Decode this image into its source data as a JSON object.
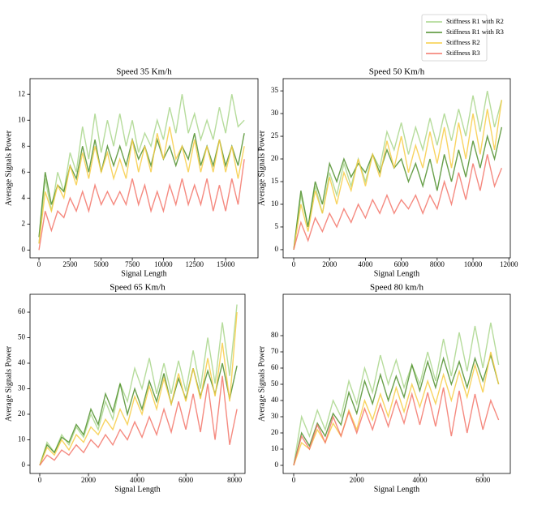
{
  "chart_data": [
    {
      "type": "line",
      "title": "Speed 35 Km/h",
      "x_label": "Signal Length",
      "y_label": "Average Signals Power",
      "x": [
        0,
        500,
        1000,
        1500,
        2000,
        2500,
        3000,
        3500,
        4000,
        4500,
        5000,
        5500,
        6000,
        6500,
        7000,
        7500,
        8000,
        8500,
        9000,
        9500,
        10000,
        10500,
        11000,
        11500,
        12000,
        12500,
        13000,
        13500,
        14000,
        14500,
        15000,
        15500,
        16000,
        16500
      ],
      "xlim": [
        -720,
        17600
      ],
      "ylim": [
        -0.6,
        13.2
      ],
      "xticks": [
        0,
        2500,
        5000,
        7500,
        10000,
        12500,
        15000
      ],
      "yticks": [
        0,
        2,
        4,
        6,
        8,
        10,
        12
      ],
      "series": [
        {
          "name": "Stiffness R1 with R2",
          "color": "#a9d68b",
          "values": [
            0.5,
            5.5,
            3,
            6,
            4.5,
            7.5,
            6,
            9.5,
            7,
            10.5,
            7.5,
            10,
            8,
            10.5,
            8,
            10,
            7.5,
            9,
            8,
            10,
            8.5,
            11,
            9,
            12,
            9,
            10.5,
            8.5,
            10,
            8.5,
            11,
            9,
            12,
            9.5,
            10
          ]
        },
        {
          "name": "Stiffness R1 with R3",
          "color": "#4f8f2b",
          "values": [
            1,
            6,
            3.5,
            5,
            4.5,
            6.5,
            5.5,
            8,
            6,
            8.5,
            6,
            8,
            6.5,
            8,
            6.5,
            8.5,
            7,
            8,
            6.5,
            8.5,
            7,
            8,
            6.5,
            8,
            7,
            9,
            6.5,
            8,
            6.5,
            8.5,
            6.5,
            8,
            6.5,
            9
          ]
        },
        {
          "name": "Stiffness R2",
          "color": "#f7cd45",
          "values": [
            0.5,
            4.5,
            3,
            5,
            4,
            6.5,
            5,
            7.5,
            5.5,
            8,
            6,
            7.5,
            5.5,
            7,
            5.5,
            8.5,
            6,
            8,
            6,
            9,
            7,
            9.5,
            7,
            8,
            6,
            8.5,
            6,
            8,
            6,
            8.5,
            6,
            8,
            5.5,
            8
          ]
        },
        {
          "name": "Stiffness R3",
          "color": "#f3766a",
          "values": [
            0,
            3,
            1.5,
            3,
            2.5,
            4,
            3,
            4.5,
            3,
            5,
            3.5,
            4.5,
            3.5,
            4.5,
            3.5,
            5.5,
            3.5,
            5,
            3,
            4.5,
            3,
            5,
            3.5,
            5.5,
            3.5,
            5,
            3.5,
            5.5,
            3,
            5,
            3,
            5.5,
            3.5,
            7
          ]
        }
      ]
    },
    {
      "type": "line",
      "title": "Speed 50 Km/h",
      "x_label": "Signal Length",
      "y_label": "Average Signals Power",
      "x": [
        0,
        400,
        800,
        1200,
        1600,
        2000,
        2400,
        2800,
        3200,
        3600,
        4000,
        4400,
        4800,
        5200,
        5600,
        6000,
        6400,
        6800,
        7200,
        7600,
        8000,
        8400,
        8800,
        9200,
        9600,
        10000,
        10400,
        10800,
        11200,
        11600
      ],
      "xlim": [
        -590,
        12080
      ],
      "ylim": [
        -1.8,
        37.7
      ],
      "xticks": [
        0,
        2000,
        4000,
        6000,
        8000,
        10000,
        12000
      ],
      "yticks": [
        0,
        5,
        10,
        15,
        20,
        25,
        30,
        35
      ],
      "series": [
        {
          "name": "Stiffness R1 with R2",
          "color": "#a9d68b",
          "values": [
            0,
            12,
            5,
            14,
            8,
            17,
            12,
            19,
            14,
            20,
            15,
            21,
            18,
            26,
            22,
            28,
            21,
            27,
            22,
            29,
            23,
            30,
            24,
            31,
            25,
            34,
            26,
            35,
            27,
            33
          ]
        },
        {
          "name": "Stiffness R1 with R3",
          "color": "#4f8f2b",
          "values": [
            0,
            13,
            5,
            15,
            10,
            19,
            15,
            20,
            16,
            19,
            17,
            21,
            17,
            22,
            18,
            20,
            15,
            19,
            14,
            20,
            13,
            21,
            15,
            22,
            16,
            24,
            18,
            25,
            20,
            27
          ]
        },
        {
          "name": "Stiffness R2",
          "color": "#f7cd45",
          "values": [
            0,
            10,
            4,
            13,
            8,
            16,
            10,
            17,
            13,
            20,
            14,
            21,
            16,
            24,
            18,
            25,
            17,
            23,
            18,
            26,
            19,
            27,
            18,
            28,
            20,
            30,
            21,
            31,
            22,
            33
          ]
        },
        {
          "name": "Stiffness R3",
          "color": "#f3766a",
          "values": [
            0,
            6,
            2,
            7,
            4,
            8,
            5,
            9,
            6,
            10,
            7,
            11,
            8,
            12,
            8,
            11,
            9,
            12,
            8,
            12,
            9,
            15,
            10,
            17,
            11,
            19,
            13,
            21,
            14,
            18
          ]
        }
      ]
    },
    {
      "type": "line",
      "title": "Speed 65 Km/h",
      "x_label": "Signal Length",
      "y_label": "Average Signals Power",
      "x": [
        0,
        300,
        600,
        900,
        1200,
        1500,
        1800,
        2100,
        2400,
        2700,
        3000,
        3300,
        3600,
        3900,
        4200,
        4500,
        4800,
        5100,
        5400,
        5700,
        6000,
        6300,
        6600,
        6900,
        7200,
        7500,
        7800,
        8100
      ],
      "xlim": [
        -400,
        8430
      ],
      "ylim": [
        -3.2,
        67
      ],
      "xticks": [
        0,
        2000,
        4000,
        6000,
        8000
      ],
      "yticks": [
        0,
        10,
        20,
        30,
        40,
        50,
        60
      ],
      "series": [
        {
          "name": "Stiffness R1 with R2",
          "color": "#a9d68b",
          "values": [
            0,
            9,
            5,
            12,
            8,
            15,
            11,
            20,
            14,
            25,
            18,
            32,
            25,
            38,
            30,
            42,
            28,
            40,
            28,
            41,
            29,
            45,
            30,
            50,
            32,
            56,
            35,
            63
          ]
        },
        {
          "name": "Stiffness R1 with R3",
          "color": "#4f8f2b",
          "values": [
            0,
            8,
            5,
            11,
            9,
            16,
            12,
            22,
            16,
            28,
            21,
            32,
            20,
            30,
            22,
            33,
            25,
            36,
            24,
            34,
            26,
            38,
            27,
            37,
            28,
            40,
            26,
            39
          ]
        },
        {
          "name": "Stiffness R2",
          "color": "#f7cd45",
          "values": [
            0,
            7,
            4,
            10,
            6,
            12,
            9,
            15,
            12,
            18,
            14,
            22,
            16,
            27,
            20,
            31,
            22,
            34,
            24,
            36,
            25,
            38,
            26,
            42,
            27,
            48,
            25,
            60
          ]
        },
        {
          "name": "Stiffness R3",
          "color": "#f3766a",
          "values": [
            0,
            4,
            2,
            6,
            4,
            8,
            5,
            10,
            7,
            12,
            8,
            14,
            10,
            17,
            11,
            19,
            12,
            22,
            13,
            25,
            14,
            28,
            13,
            32,
            10,
            35,
            8,
            22
          ]
        }
      ]
    },
    {
      "type": "line",
      "title": "Speed 80 km/h",
      "x_label": "Signal Length",
      "y_label": "Average Signals Power",
      "x": [
        0,
        250,
        500,
        750,
        1000,
        1250,
        1500,
        1750,
        2000,
        2250,
        2500,
        2750,
        3000,
        3250,
        3500,
        3750,
        4000,
        4250,
        4500,
        4750,
        5000,
        5250,
        5500,
        5750,
        6000,
        6250,
        6500
      ],
      "xlim": [
        -335,
        6870
      ],
      "ylim": [
        -5,
        105.5
      ],
      "xticks": [
        0,
        2000,
        4000,
        6000
      ],
      "yticks": [
        0,
        10,
        20,
        30,
        40,
        50,
        60,
        70,
        80
      ],
      "series": [
        {
          "name": "Stiffness R1 with R2",
          "color": "#a9d68b",
          "values": [
            0,
            30,
            18,
            34,
            22,
            40,
            30,
            52,
            38,
            60,
            45,
            68,
            50,
            65,
            48,
            62,
            50,
            70,
            52,
            78,
            55,
            82,
            58,
            86,
            60,
            88,
            62
          ]
        },
        {
          "name": "Stiffness R1 with R3",
          "color": "#4f8f2b",
          "values": [
            0,
            20,
            12,
            26,
            18,
            32,
            25,
            45,
            32,
            52,
            38,
            56,
            40,
            55,
            42,
            62,
            46,
            64,
            48,
            66,
            50,
            64,
            48,
            66,
            52,
            68,
            50
          ]
        },
        {
          "name": "Stiffness R2",
          "color": "#f7cd45",
          "values": [
            0,
            14,
            10,
            22,
            14,
            26,
            18,
            34,
            22,
            40,
            28,
            44,
            30,
            48,
            33,
            50,
            36,
            52,
            38,
            56,
            40,
            58,
            42,
            62,
            45,
            70,
            50
          ]
        },
        {
          "name": "Stiffness R3",
          "color": "#f3766a",
          "values": [
            0,
            18,
            10,
            25,
            14,
            30,
            18,
            33,
            20,
            35,
            22,
            38,
            24,
            40,
            26,
            44,
            25,
            45,
            24,
            48,
            18,
            46,
            20,
            44,
            22,
            40,
            28
          ]
        }
      ]
    }
  ]
}
